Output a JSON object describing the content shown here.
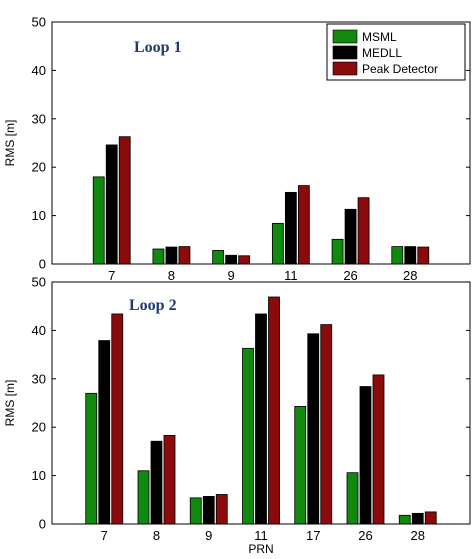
{
  "colors": {
    "msml": "#11890f",
    "medll": "#000000",
    "peak": "#8b0a0c"
  },
  "chart_data": [
    {
      "type": "bar",
      "annotation": "Loop 1",
      "ylabel": "RMS [m]",
      "xlabel": "",
      "ylim": [
        0,
        50
      ],
      "yticks": [
        0,
        10,
        20,
        30,
        40,
        50
      ],
      "grid": false,
      "legend_position": "top-right",
      "categories": [
        "7",
        "8",
        "9",
        "11",
        "26",
        "28"
      ],
      "series": [
        {
          "name": "MSML",
          "values": [
            18.0,
            3.1,
            2.8,
            8.4,
            5.1,
            3.6
          ]
        },
        {
          "name": "MEDLL",
          "values": [
            24.6,
            3.5,
            1.8,
            14.8,
            11.3,
            3.6
          ]
        },
        {
          "name": "Peak Detector",
          "values": [
            26.3,
            3.6,
            1.7,
            16.2,
            13.7,
            3.5
          ]
        }
      ]
    },
    {
      "type": "bar",
      "annotation": "Loop 2",
      "ylabel": "RMS [m]",
      "xlabel": "PRN",
      "ylim": [
        0,
        50
      ],
      "yticks": [
        0,
        10,
        20,
        30,
        40,
        50
      ],
      "grid": false,
      "categories": [
        "7",
        "8",
        "9",
        "11",
        "17",
        "26",
        "28"
      ],
      "series": [
        {
          "name": "MSML",
          "values": [
            27.0,
            11.0,
            5.4,
            36.3,
            24.3,
            10.6,
            1.8
          ]
        },
        {
          "name": "MEDLL",
          "values": [
            37.9,
            17.1,
            5.7,
            43.4,
            39.3,
            28.4,
            2.2
          ]
        },
        {
          "name": "Peak Detector",
          "values": [
            43.4,
            18.3,
            6.1,
            46.9,
            41.2,
            30.8,
            2.5
          ]
        }
      ]
    }
  ]
}
